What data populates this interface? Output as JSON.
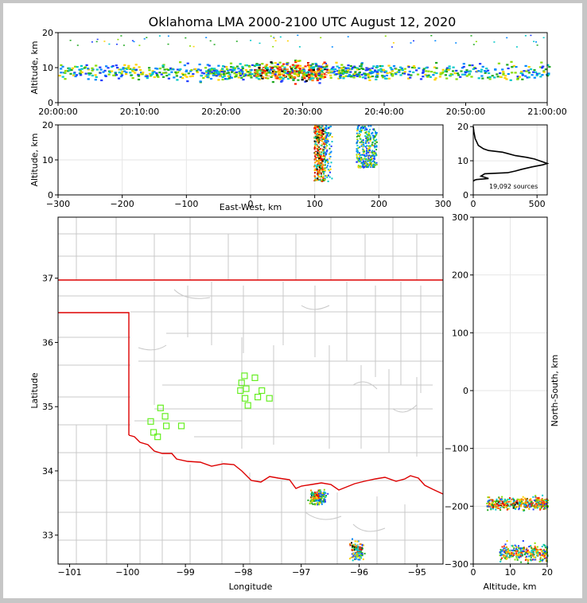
{
  "title": "Oklahoma LMA 2000-2100 UTC August 12, 2020",
  "chart_data": [
    {
      "type": "heatmap",
      "name": "altitude-vs-time",
      "ylabel": "Altitude, km",
      "xlabel": "",
      "xticklabels": [
        "20:00:00",
        "20:10:00",
        "20:20:00",
        "20:30:00",
        "20:40:00",
        "20:50:00",
        "21:00:00"
      ],
      "xlim_minutes": [
        0,
        60
      ],
      "ylim": [
        0,
        20
      ],
      "yticks": [
        0,
        10,
        20
      ],
      "peak_activity_minutes": [
        24,
        33
      ],
      "typical_altitude_km": [
        5,
        14
      ]
    },
    {
      "type": "heatmap",
      "name": "altitude-vs-east-west",
      "xlabel": "East-West, km",
      "ylabel": "Altitude, km",
      "xlim": [
        -300,
        300
      ],
      "xticks": [
        -300,
        -200,
        -100,
        0,
        100,
        200,
        300
      ],
      "ylim": [
        0,
        20
      ],
      "yticks": [
        0,
        10,
        20
      ],
      "clusters": [
        {
          "x_range_km": [
            98,
            128
          ],
          "alt_range_km": [
            4,
            20
          ]
        },
        {
          "x_range_km": [
            164,
            196
          ],
          "alt_range_km": [
            8,
            20
          ]
        }
      ]
    },
    {
      "type": "line",
      "name": "altitude-histogram",
      "xlim": [
        0,
        580
      ],
      "xticks": [
        0,
        500
      ],
      "ylim": [
        0,
        20.5
      ],
      "yticks": [
        0,
        10,
        20
      ],
      "annotation": "19,092 sources",
      "x": [
        0,
        10,
        25,
        120,
        60,
        90,
        270,
        330,
        380,
        460,
        545,
        580,
        480,
        420,
        330,
        230,
        120,
        80,
        40,
        15,
        5,
        0
      ],
      "y": [
        4.0,
        4.3,
        4.5,
        4.8,
        5.5,
        6.2,
        6.5,
        7.0,
        7.5,
        8.2,
        8.8,
        9.2,
        10.5,
        11.0,
        11.5,
        12.5,
        13.0,
        13.5,
        14.5,
        16.5,
        18.5,
        20.0
      ]
    },
    {
      "type": "scatter",
      "name": "plan-view-map",
      "xlabel": "Longitude",
      "ylabel": "Latitude",
      "xlim": [
        -101.2,
        -94.55
      ],
      "ylim": [
        32.55,
        37.95
      ],
      "xticks": [
        -101,
        -100,
        -99,
        -98,
        -97,
        -96,
        -95
      ],
      "yticks": [
        33,
        34,
        35,
        36,
        37
      ],
      "stations": {
        "lon": [
          -97.98,
          -97.8,
          -98.03,
          -97.95,
          -98.05,
          -97.68,
          -97.97,
          -97.75,
          -97.92,
          -97.55,
          -99.43,
          -99.35,
          -99.6,
          -99.33,
          -99.55,
          -99.48,
          -99.07
        ],
        "lat": [
          35.48,
          35.45,
          35.37,
          35.28,
          35.25,
          35.25,
          35.13,
          35.15,
          35.02,
          35.13,
          34.98,
          34.85,
          34.77,
          34.7,
          34.6,
          34.53,
          34.7
        ]
      },
      "source_clusters": [
        {
          "lon_range": [
            -96.95,
            -96.5
          ],
          "lat_range": [
            33.45,
            33.75
          ]
        },
        {
          "lon_range": [
            -96.2,
            -95.9
          ],
          "lat_range": [
            32.55,
            32.98
          ]
        }
      ]
    },
    {
      "type": "heatmap",
      "name": "north-south-vs-altitude",
      "xlabel": "Altitude, km",
      "ylabel": "North-South, km",
      "xlim": [
        0,
        20
      ],
      "xticks": [
        0,
        10,
        20
      ],
      "ylim": [
        -300,
        300
      ],
      "yticks": [
        -300,
        -200,
        -100,
        0,
        100,
        200,
        300
      ],
      "clusters": [
        {
          "ns_range_km": [
            -210,
            -178
          ],
          "alt_range_km": [
            3.5,
            20
          ]
        },
        {
          "ns_range_km": [
            -300,
            -258
          ],
          "alt_range_km": [
            7,
            20
          ]
        }
      ]
    }
  ]
}
